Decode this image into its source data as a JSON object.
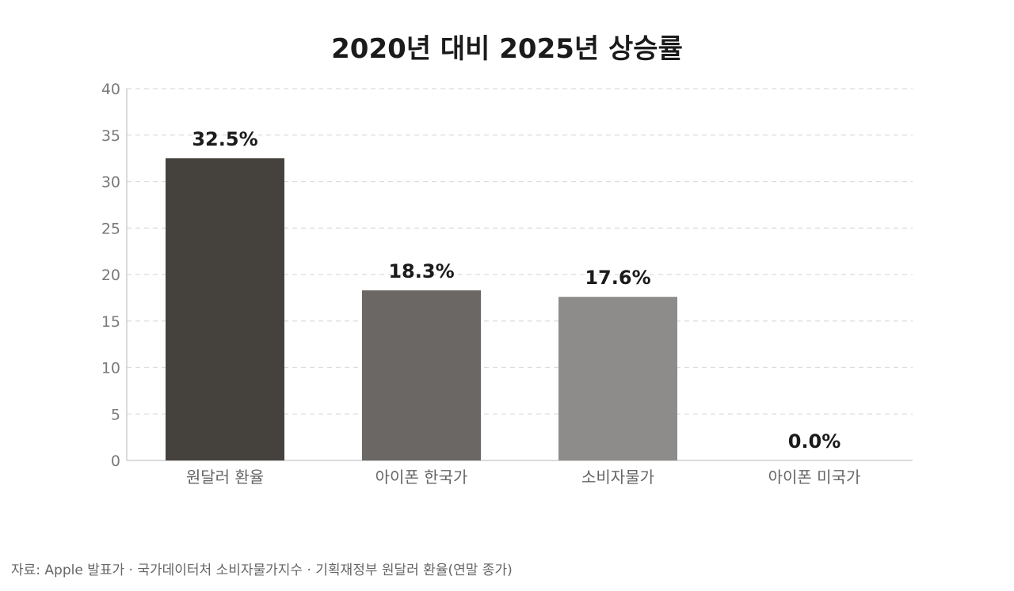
{
  "chart_data": {
    "type": "bar",
    "title": "2020년 대비 2025년 상승률",
    "categories": [
      "원달러 환율",
      "아이폰 한국가",
      "소비자물가",
      "아이폰 미국가"
    ],
    "values": [
      32.5,
      18.3,
      17.6,
      0.0
    ],
    "data_labels": [
      "32.5%",
      "18.3%",
      "17.6%",
      "0.0%"
    ],
    "bar_colors": [
      "#45413d",
      "#6a6764",
      "#8e8c8a",
      "#c4c2c0"
    ],
    "ylim": [
      0,
      40
    ],
    "yticks": [
      0,
      5,
      10,
      15,
      20,
      25,
      30,
      35,
      40
    ],
    "ytick_labels": [
      "0",
      "5",
      "10",
      "15",
      "20",
      "25",
      "30",
      "35",
      "40"
    ],
    "xlabel": "",
    "ylabel": "",
    "grid": true,
    "legend": "none"
  },
  "source_note": "자료: Apple 발표가 · 국가데이터처 소비자물가지수 · 기획재정부 원달러 환율(연말 종가)"
}
